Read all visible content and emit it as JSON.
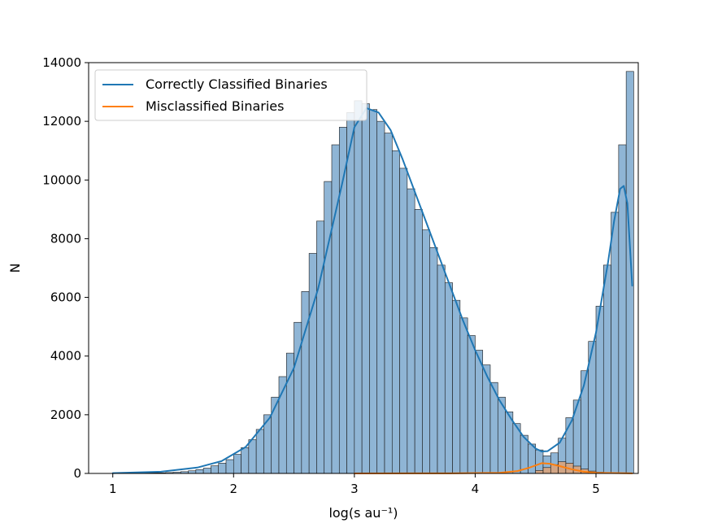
{
  "chart_data": {
    "type": "histogram",
    "xlabel": "log(s au⁻¹)",
    "ylabel": "N",
    "xlim": [
      0.8,
      5.35
    ],
    "ylim": [
      0,
      14000
    ],
    "xticks": [
      1,
      2,
      3,
      4,
      5
    ],
    "yticks": [
      0,
      2000,
      4000,
      6000,
      8000,
      10000,
      12000,
      14000
    ],
    "grid": false,
    "legend_placement": "top-left",
    "bin_start": 1.0,
    "bin_width": 0.0625,
    "series": [
      {
        "name": "Correctly Classified Binaries",
        "color": "#1f77b4",
        "bar_fill": "#8fb5d5",
        "counts": [
          20,
          20,
          20,
          20,
          20,
          20,
          20,
          30,
          40,
          60,
          90,
          130,
          180,
          260,
          350,
          470,
          650,
          880,
          1150,
          1500,
          2000,
          2600,
          3300,
          4100,
          5150,
          6200,
          7500,
          8600,
          9950,
          11200,
          11800,
          12300,
          12700,
          12600,
          12400,
          12000,
          11600,
          11000,
          10400,
          9700,
          9000,
          8300,
          7700,
          7100,
          6500,
          5900,
          5300,
          4700,
          4200,
          3700,
          3100,
          2600,
          2100,
          1700,
          1300,
          1000,
          800,
          600,
          700,
          1200,
          1900,
          2500,
          3500,
          4500,
          5700,
          7100,
          8900,
          11200,
          13700
        ],
        "kde": [
          [
            1.0,
            10
          ],
          [
            1.4,
            60
          ],
          [
            1.7,
            200
          ],
          [
            1.9,
            420
          ],
          [
            2.1,
            900
          ],
          [
            2.3,
            1900
          ],
          [
            2.5,
            3600
          ],
          [
            2.7,
            6300
          ],
          [
            2.9,
            9900
          ],
          [
            3.0,
            11800
          ],
          [
            3.1,
            12450
          ],
          [
            3.2,
            12300
          ],
          [
            3.3,
            11700
          ],
          [
            3.4,
            10700
          ],
          [
            3.5,
            9600
          ],
          [
            3.6,
            8500
          ],
          [
            3.7,
            7400
          ],
          [
            3.8,
            6300
          ],
          [
            3.9,
            5200
          ],
          [
            4.0,
            4200
          ],
          [
            4.1,
            3300
          ],
          [
            4.2,
            2500
          ],
          [
            4.3,
            1850
          ],
          [
            4.4,
            1250
          ],
          [
            4.5,
            850
          ],
          [
            4.55,
            750
          ],
          [
            4.6,
            760
          ],
          [
            4.7,
            1050
          ],
          [
            4.8,
            1800
          ],
          [
            4.9,
            3000
          ],
          [
            5.0,
            4800
          ],
          [
            5.1,
            7200
          ],
          [
            5.15,
            8600
          ],
          [
            5.2,
            9700
          ],
          [
            5.23,
            9800
          ],
          [
            5.26,
            9200
          ],
          [
            5.3,
            6400
          ]
        ]
      },
      {
        "name": "Misclassified Binaries",
        "color": "#ff7f0e",
        "bar_fill": "#e8a06a",
        "counts": [
          0,
          0,
          0,
          0,
          0,
          0,
          0,
          0,
          0,
          0,
          0,
          0,
          0,
          0,
          0,
          0,
          0,
          0,
          0,
          0,
          0,
          0,
          0,
          0,
          0,
          0,
          0,
          0,
          0,
          0,
          0,
          0,
          0,
          0,
          0,
          0,
          0,
          0,
          0,
          0,
          0,
          0,
          0,
          0,
          0,
          0,
          0,
          0,
          0,
          0,
          0,
          0,
          0,
          0,
          0,
          0,
          100,
          200,
          300,
          400,
          350,
          250,
          150,
          80,
          40,
          20,
          10,
          0,
          0
        ],
        "kde": [
          [
            3.0,
            0
          ],
          [
            3.8,
            5
          ],
          [
            4.2,
            20
          ],
          [
            4.35,
            80
          ],
          [
            4.45,
            200
          ],
          [
            4.55,
            350
          ],
          [
            4.62,
            330
          ],
          [
            4.7,
            250
          ],
          [
            4.8,
            140
          ],
          [
            4.9,
            60
          ],
          [
            5.0,
            20
          ],
          [
            5.3,
            5
          ]
        ]
      }
    ]
  }
}
